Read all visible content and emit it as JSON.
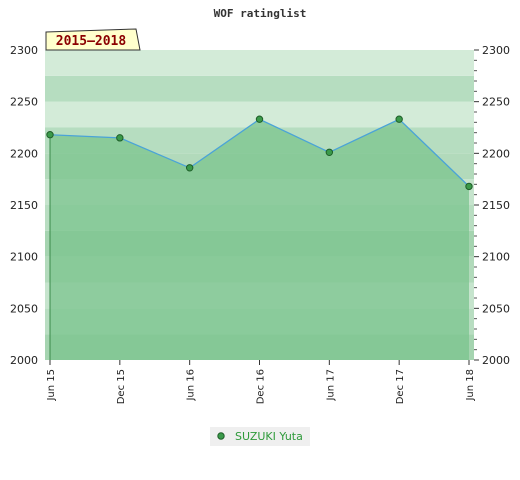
{
  "chart_data": {
    "type": "area",
    "title": "WOF ratinglist",
    "period_label": "2015–2018",
    "x": [
      "2015-06",
      "2015-12",
      "2016-06",
      "2016-12",
      "2017-06",
      "2017-12",
      "2018-06"
    ],
    "x_tick_labels": [
      "Jun 15",
      "Dec 15",
      "Jun 16",
      "Dec 16",
      "Jun 17",
      "Dec 17",
      "Jun 18"
    ],
    "ylim": [
      2000,
      2300
    ],
    "y_ticks": [
      2000,
      2050,
      2100,
      2150,
      2200,
      2250,
      2300
    ],
    "y_axis_both_sides": true,
    "series": [
      {
        "name": "SUZUKI Yuta",
        "points": [
          {
            "x": "2015-06",
            "y": 2218
          },
          {
            "x": "2015-12",
            "y": 2215
          },
          {
            "x": "2016-06",
            "y": 2186
          },
          {
            "x": "2016-12",
            "y": 2233
          },
          {
            "x": "2017-06",
            "y": 2201
          },
          {
            "x": "2017-12",
            "y": 2233
          },
          {
            "x": "2018-06",
            "y": 2168
          }
        ]
      }
    ],
    "legend_position": "bottom-center",
    "colors": {
      "line": "#4aa3d8",
      "marker": "#3a9a4a",
      "fill": "#7bc48e",
      "legend_text": "#2e9a3a",
      "period_box": "#ffffcc",
      "period_text": "#8b0000"
    }
  }
}
